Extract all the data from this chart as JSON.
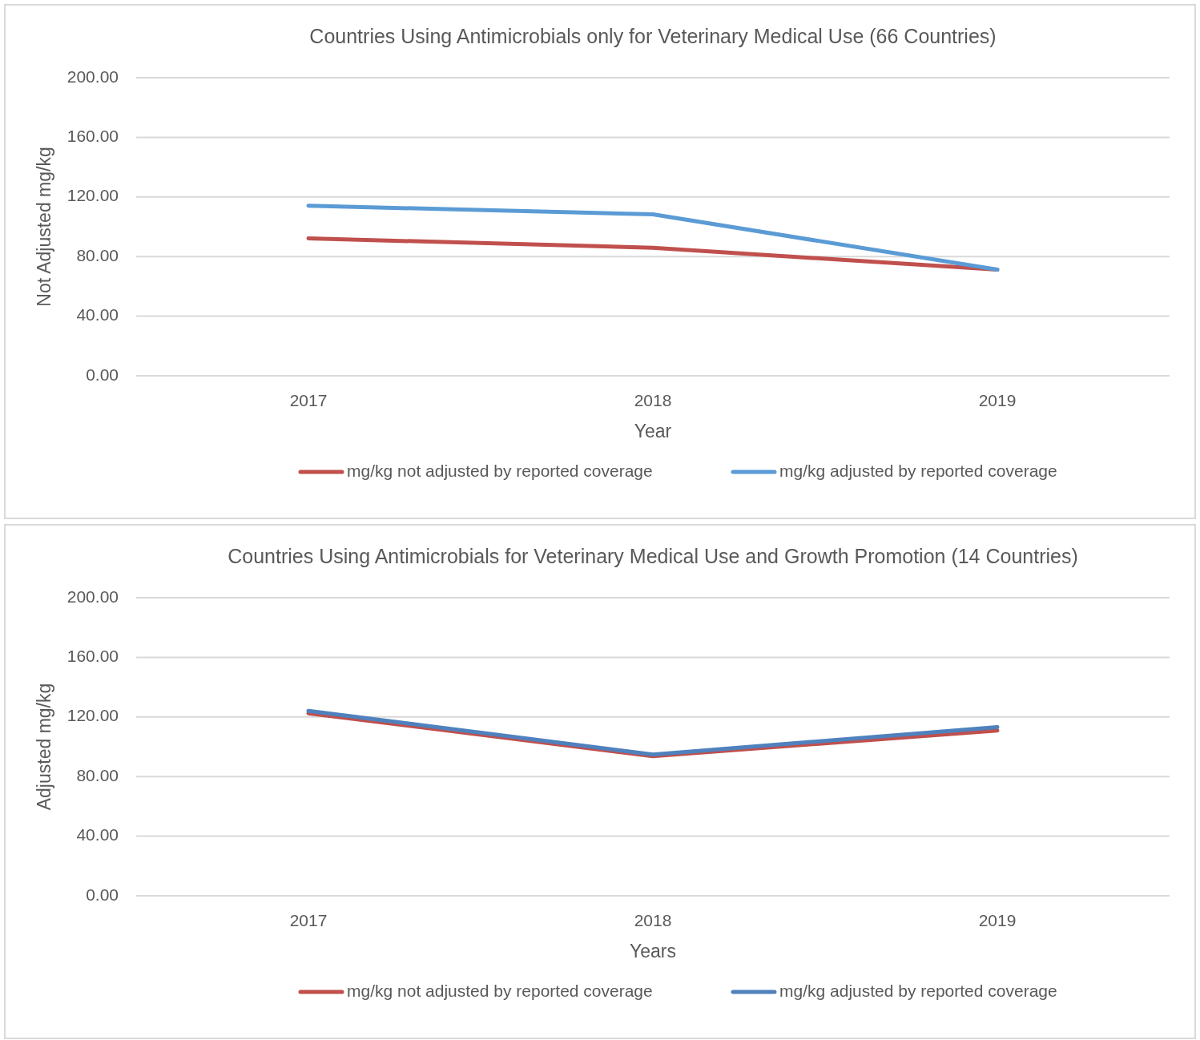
{
  "chart_data": [
    {
      "type": "line",
      "title": "Countries Using Antimicrobials only for Veterinary Medical Use (66 Countries)",
      "xlabel": "Year",
      "ylabel": "Not Adjusted mg/kg",
      "categories": [
        "2017",
        "2018",
        "2019"
      ],
      "series": [
        {
          "name": "mg/kg not adjusted by reported coverage",
          "color": "#c0504d",
          "values": [
            92.2,
            85.9,
            71.2
          ]
        },
        {
          "name": "mg/kg adjusted by reported coverage",
          "color": "#5b9bd5",
          "values": [
            114.1,
            108.3,
            71.2
          ]
        }
      ],
      "ylim": [
        0,
        200
      ],
      "yticks": [
        {
          "value": 0,
          "label": "0.00"
        },
        {
          "value": 40,
          "label": "40.00"
        },
        {
          "value": 80,
          "label": "80.00"
        },
        {
          "value": 120,
          "label": "120.00"
        },
        {
          "value": 160,
          "label": "160.00"
        },
        {
          "value": 200,
          "label": "200.00"
        }
      ],
      "grid": "y",
      "legend": "bottom"
    },
    {
      "type": "line",
      "title": "Countries Using Antimicrobials for Veterinary Medical Use and Growth Promotion (14 Countries)",
      "xlabel": "Years",
      "ylabel": "Adjusted mg/kg",
      "categories": [
        "2017",
        "2018",
        "2019"
      ],
      "series": [
        {
          "name": "mg/kg not adjusted by reported coverage",
          "color": "#c0504d",
          "values": [
            122.4,
            93.7,
            110.9
          ]
        },
        {
          "name": "mg/kg adjusted by reported coverage",
          "color": "#4f81bd",
          "values": [
            124.1,
            94.8,
            113.2
          ]
        }
      ],
      "ylim": [
        0,
        200
      ],
      "yticks": [
        {
          "value": 0,
          "label": "0.00"
        },
        {
          "value": 40,
          "label": "40.00"
        },
        {
          "value": 80,
          "label": "80.00"
        },
        {
          "value": 120,
          "label": "120.00"
        },
        {
          "value": 160,
          "label": "160.00"
        },
        {
          "value": 200,
          "label": "200.00"
        }
      ],
      "grid": "y",
      "legend": "bottom"
    }
  ]
}
